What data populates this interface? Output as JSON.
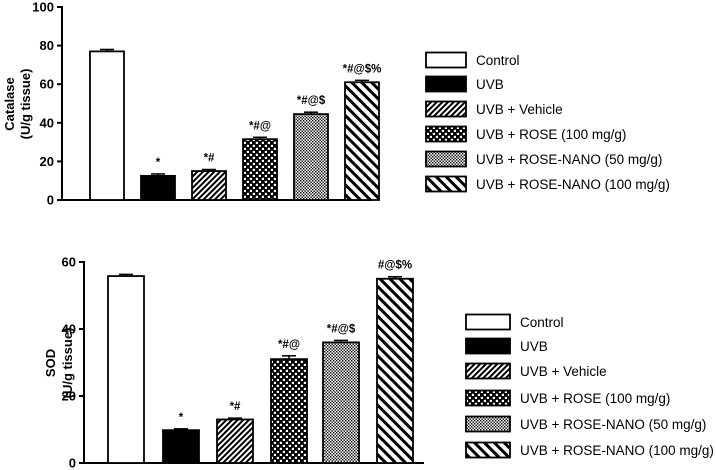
{
  "chart_data": [
    {
      "type": "bar",
      "ylabel_line1": "Catalase",
      "ylabel_line2": "(U/g tissue)",
      "ylim": [
        0,
        100
      ],
      "yticks": [
        "0",
        "20",
        "40",
        "60",
        "80",
        "100"
      ],
      "ytick_values": [
        0,
        20,
        40,
        60,
        80,
        100
      ],
      "categories": [
        "Control",
        "UVB",
        "UVB + Vehicle",
        "UVB + ROSE (100 mg/g)",
        "UVB + ROSE-NANO (50 mg/g)",
        "UVB + ROSE-NANO (100 mg/g)"
      ],
      "values": [
        77,
        12.5,
        15,
        31.5,
        44.5,
        61
      ],
      "errors": [
        1,
        1,
        0.8,
        1,
        1,
        1
      ],
      "significance": [
        "",
        "*",
        "*#",
        "*#@",
        "*#@$",
        "*#@$%"
      ],
      "legend": [
        "Control",
        "UVB",
        "UVB + Vehicle",
        "UVB + ROSE (100 mg/g)",
        "UVB + ROSE-NANO (50 mg/g)",
        "UVB + ROSE-NANO (100 mg/g)"
      ],
      "legend_position": "right"
    },
    {
      "type": "bar",
      "ylabel_line1": "SOD",
      "ylabel_line2": "(U/g tissue)",
      "ylim": [
        0,
        60
      ],
      "yticks": [
        "0",
        "20",
        "40",
        "60"
      ],
      "ytick_values": [
        0,
        20,
        40,
        60
      ],
      "categories": [
        "Control",
        "UVB",
        "UVB + Vehicle",
        "UVB + ROSE (100 mg/g)",
        "UVB + ROSE-NANO (50 mg/g)",
        "UVB + ROSE-NANO (100 mg/g)"
      ],
      "values": [
        55.8,
        9.8,
        13,
        31,
        36,
        55
      ],
      "errors": [
        0.5,
        0.4,
        0.4,
        1,
        0.6,
        0.6
      ],
      "significance": [
        "",
        "*",
        "*#",
        "*#@",
        "*#@$",
        "#@$%"
      ],
      "legend": [
        "Control",
        "UVB",
        "UVB + Vehicle",
        "UVB + ROSE (100 mg/g)",
        "UVB + ROSE-NANO (50 mg/g)",
        "UVB + ROSE-NANO (100 mg/g)"
      ],
      "legend_position": "right"
    }
  ]
}
